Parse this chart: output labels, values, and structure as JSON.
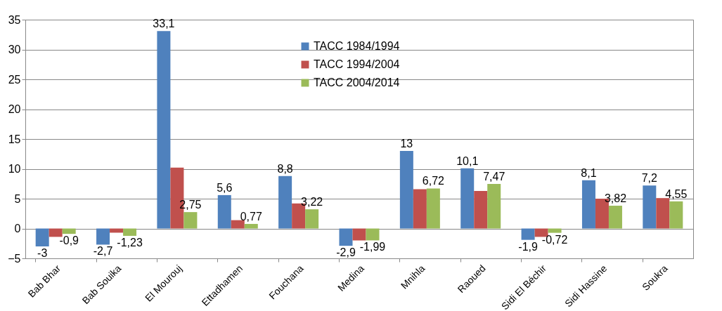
{
  "chart_data": {
    "type": "bar",
    "categories": [
      "Bab Bhar",
      "Bab Souika",
      "El Mourouj",
      "Ettadhamen",
      "Fouchana",
      "Medina",
      "Mnihla",
      "Raoued",
      "Sidi El Béchir",
      "Sidi Hassine",
      "Soukra"
    ],
    "series": [
      {
        "name": "TACC 1984/1994",
        "color": "#4f81bd",
        "values": [
          -3,
          -2.7,
          33.1,
          5.6,
          8.8,
          -2.9,
          13,
          10.1,
          -1.9,
          8.1,
          7.2
        ],
        "value_labels": [
          "-3",
          "-2,7",
          "33,1",
          "5,6",
          "8,8",
          "-2,9",
          "13",
          "10,1",
          "-1,9",
          "8,1",
          "7,2"
        ]
      },
      {
        "name": "TACC 1994/2004",
        "color": "#c0504d",
        "values": [
          -1.4,
          -0.7,
          10.2,
          1.4,
          4.2,
          -2,
          6.6,
          6.3,
          -1.4,
          5,
          5.1
        ]
      },
      {
        "name": "TACC 2004/2014",
        "color": "#9bbb59",
        "values": [
          -0.9,
          -1.23,
          2.75,
          0.77,
          3.22,
          -1.99,
          6.72,
          7.47,
          -0.72,
          3.82,
          4.55
        ],
        "value_labels": [
          "-0,9",
          "-1,23",
          "2,75",
          "0,77",
          "3,22",
          "-1,99",
          "6,72",
          "7,47",
          "-0,72",
          "3,82",
          "4,55"
        ]
      }
    ],
    "ylim": [
      -5,
      35
    ],
    "yticks": [
      -5,
      0,
      5,
      10,
      15,
      20,
      25,
      30,
      35
    ],
    "grid": "y",
    "legend": "top"
  }
}
